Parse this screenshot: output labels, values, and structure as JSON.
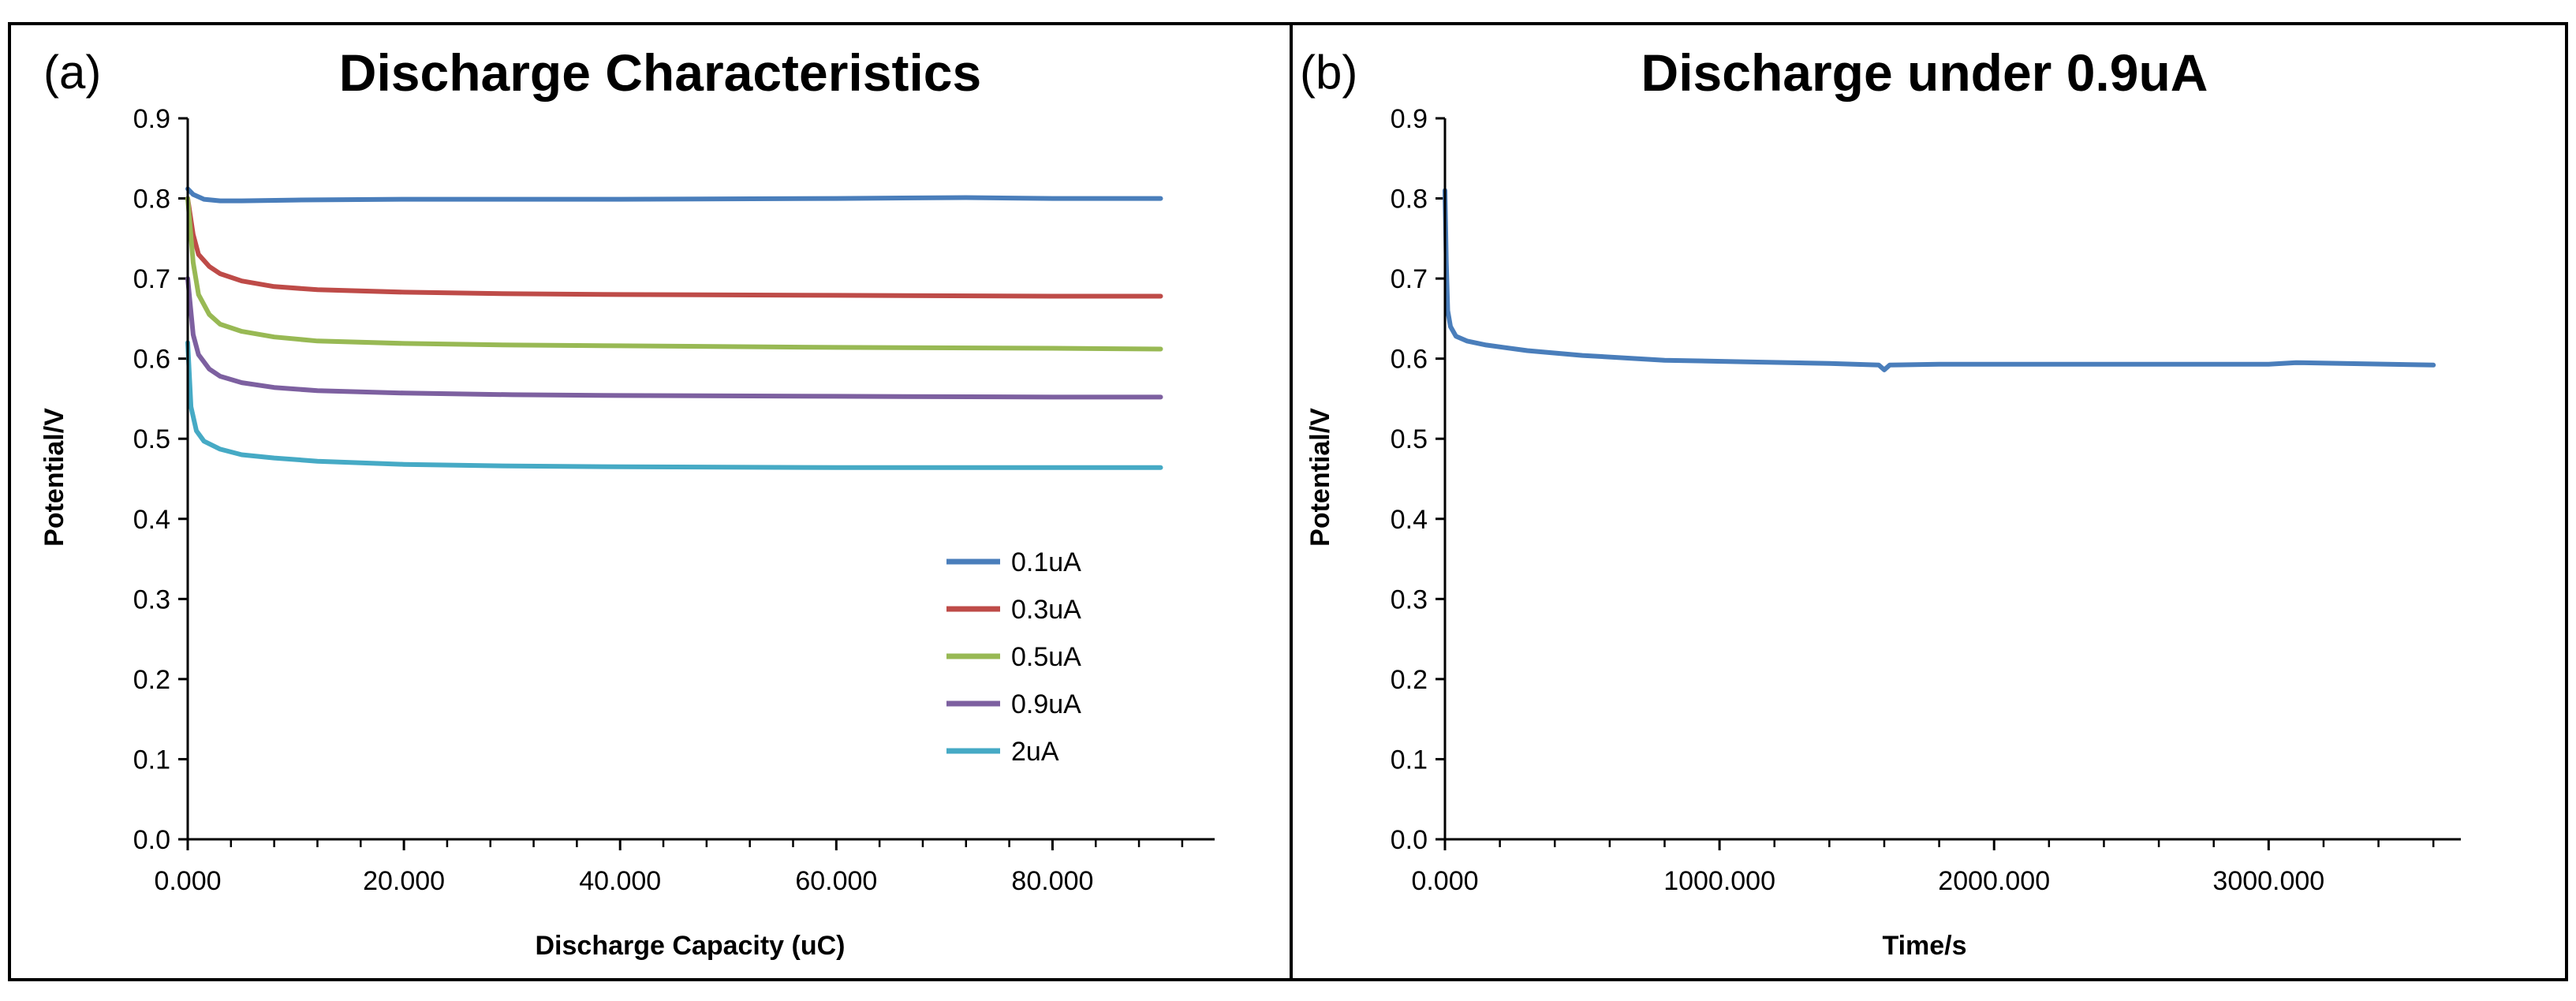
{
  "chart_data": [
    {
      "type": "line",
      "panel_label": "(a)",
      "title": "Discharge Characteristics",
      "xlabel": "Discharge Capacity (uC)",
      "ylabel": "Potential/V",
      "xlim": [
        0,
        95
      ],
      "ylim": [
        0,
        0.9
      ],
      "x_ticks": [
        "0.000",
        "20.000",
        "40.000",
        "60.000",
        "80.000"
      ],
      "x_tick_values": [
        0,
        20,
        40,
        60,
        80
      ],
      "y_ticks": [
        "0.0",
        "0.1",
        "0.2",
        "0.3",
        "0.4",
        "0.5",
        "0.6",
        "0.7",
        "0.8",
        "0.9"
      ],
      "y_tick_values": [
        0,
        0.1,
        0.2,
        0.3,
        0.4,
        0.5,
        0.6,
        0.7,
        0.8,
        0.9
      ],
      "legend_position": "lower-right",
      "series": [
        {
          "name": "0.1uA",
          "color": "#4a7ebb",
          "x": [
            0,
            0.5,
            1.5,
            3,
            5,
            10,
            20,
            40,
            60,
            72,
            80,
            90
          ],
          "y": [
            0.812,
            0.805,
            0.799,
            0.797,
            0.797,
            0.798,
            0.799,
            0.799,
            0.8,
            0.801,
            0.8,
            0.8
          ]
        },
        {
          "name": "0.3uA",
          "color": "#be4b48",
          "x": [
            0,
            0.5,
            1,
            2,
            3,
            5,
            8,
            12,
            20,
            30,
            40,
            60,
            80,
            90
          ],
          "y": [
            0.8,
            0.755,
            0.73,
            0.715,
            0.706,
            0.697,
            0.69,
            0.686,
            0.683,
            0.681,
            0.68,
            0.679,
            0.678,
            0.678
          ]
        },
        {
          "name": "0.5uA",
          "color": "#98b954",
          "x": [
            0,
            0.5,
            1,
            2,
            3,
            5,
            8,
            12,
            20,
            30,
            40,
            60,
            80,
            90
          ],
          "y": [
            0.8,
            0.72,
            0.68,
            0.655,
            0.643,
            0.634,
            0.627,
            0.622,
            0.619,
            0.617,
            0.616,
            0.614,
            0.613,
            0.612
          ]
        },
        {
          "name": "0.9uA",
          "color": "#7d60a0",
          "x": [
            0,
            0.5,
            1,
            2,
            3,
            5,
            8,
            12,
            20,
            30,
            40,
            60,
            80,
            90
          ],
          "y": [
            0.7,
            0.63,
            0.605,
            0.587,
            0.578,
            0.57,
            0.564,
            0.56,
            0.557,
            0.555,
            0.554,
            0.553,
            0.552,
            0.552
          ]
        },
        {
          "name": "2uA",
          "color": "#46aac5",
          "x": [
            0,
            0.3,
            0.8,
            1.5,
            3,
            5,
            8,
            12,
            20,
            30,
            40,
            60,
            80,
            90
          ],
          "y": [
            0.62,
            0.54,
            0.51,
            0.497,
            0.487,
            0.48,
            0.476,
            0.472,
            0.468,
            0.466,
            0.465,
            0.464,
            0.464,
            0.464
          ]
        }
      ]
    },
    {
      "type": "line",
      "panel_label": "(b)",
      "title": "Discharge under 0.9uA",
      "xlabel": "Time/s",
      "ylabel": "Potential/V",
      "xlim": [
        0,
        3700
      ],
      "ylim": [
        0,
        0.9
      ],
      "x_ticks": [
        "0.000",
        "1000.000",
        "2000.000",
        "3000.000"
      ],
      "x_tick_values": [
        0,
        1000,
        2000,
        3000
      ],
      "y_ticks": [
        "0.0",
        "0.1",
        "0.2",
        "0.3",
        "0.4",
        "0.5",
        "0.6",
        "0.7",
        "0.8",
        "0.9"
      ],
      "y_tick_values": [
        0,
        0.1,
        0.2,
        0.3,
        0.4,
        0.5,
        0.6,
        0.7,
        0.8,
        0.9
      ],
      "series": [
        {
          "name": "0.9uA",
          "color": "#4a7ebb",
          "x": [
            0,
            5,
            10,
            20,
            40,
            80,
            150,
            300,
            500,
            800,
            1100,
            1400,
            1580,
            1600,
            1620,
            1800,
            2200,
            2600,
            3000,
            3100,
            3600
          ],
          "y": [
            0.81,
            0.72,
            0.66,
            0.64,
            0.628,
            0.622,
            0.617,
            0.61,
            0.604,
            0.598,
            0.596,
            0.594,
            0.592,
            0.586,
            0.592,
            0.593,
            0.593,
            0.593,
            0.593,
            0.595,
            0.592
          ]
        }
      ]
    }
  ]
}
